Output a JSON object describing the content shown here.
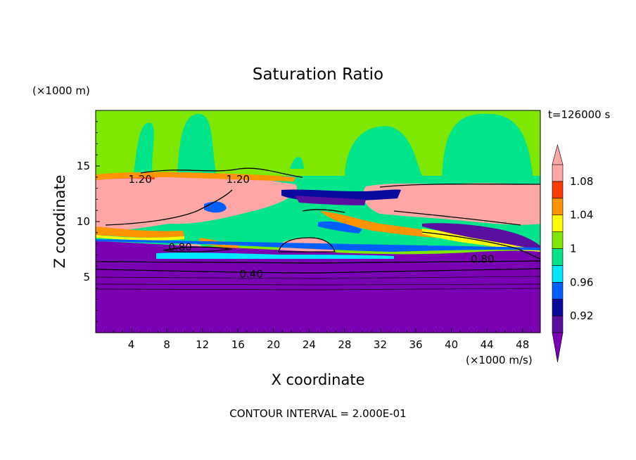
{
  "chart_data": {
    "type": "contour",
    "title": "Saturation Ratio",
    "xlabel": "X coordinate",
    "ylabel": "Z coordinate",
    "x_unit": "(×1000 m/s)",
    "y_unit": "(×1000 m)",
    "time_label": "t=126000 s",
    "footer": "CONTOUR INTERVAL = 2.000E-01",
    "xlim": [
      0,
      50
    ],
    "ylim": [
      0,
      20
    ],
    "x_ticks": [
      4,
      8,
      12,
      16,
      20,
      24,
      28,
      32,
      36,
      40,
      44,
      48
    ],
    "y_ticks": [
      5,
      10,
      15
    ],
    "contour_labels": [
      {
        "text": "1.20",
        "x": 5,
        "z": 13.8
      },
      {
        "text": "1.20",
        "x": 16,
        "z": 13.8
      },
      {
        "text": "0.80",
        "x": 9.5,
        "z": 7.7
      },
      {
        "text": "0.80",
        "x": 43.5,
        "z": 6.6
      },
      {
        "text": "0.40",
        "x": 17.5,
        "z": 5.3
      }
    ],
    "colorbar": {
      "levels": [
        0.9,
        0.92,
        0.94,
        0.96,
        0.98,
        1.0,
        1.02,
        1.04,
        1.06,
        1.08,
        1.1
      ],
      "tick_labels": [
        "0.92",
        "0.96",
        "1",
        "1.04",
        "1.08"
      ],
      "colors": {
        "under": "#7a00b4",
        "c0": "#5a0fa0",
        "c1": "#0a0a9e",
        "c2": "#0060ff",
        "c3": "#00e8ff",
        "c4": "#00e48a",
        "c5": "#7ee800",
        "c6": "#ffff00",
        "c7": "#ff9400",
        "c8": "#ff3c00",
        "over": "#ffa6a6"
      }
    }
  }
}
